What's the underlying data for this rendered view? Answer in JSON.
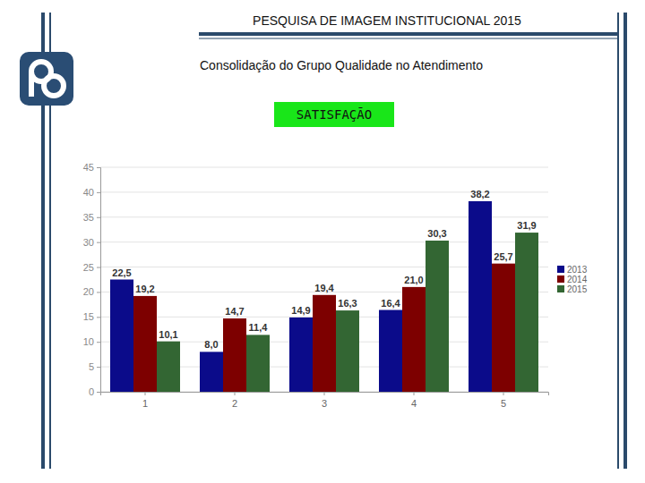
{
  "page": {
    "title": "PESQUISA DE IMAGEM INSTITUCIONAL 2015",
    "subtitle": "Consolidação do Grupo Qualidade no Atendimento"
  },
  "chart_data": {
    "type": "bar",
    "title": "SATISFAÇÃO",
    "categories": [
      "1",
      "2",
      "3",
      "4",
      "5"
    ],
    "series": [
      {
        "name": "2013",
        "color": "#0b0b8a",
        "values": [
          22.5,
          8.0,
          14.9,
          16.4,
          38.2
        ],
        "value_labels": [
          "22,5",
          "8,0",
          "14,9",
          "16,4",
          "38,2"
        ]
      },
      {
        "name": "2014",
        "color": "#7d0000",
        "values": [
          19.2,
          14.7,
          19.4,
          21.0,
          25.7
        ],
        "value_labels": [
          "19,2",
          "14,7",
          "19,4",
          "21,0",
          "25,7"
        ]
      },
      {
        "name": "2015",
        "color": "#336633",
        "values": [
          10.1,
          11.4,
          16.3,
          30.3,
          31.9
        ],
        "value_labels": [
          "10,1",
          "11,4",
          "16,3",
          "30,3",
          "31,9"
        ]
      }
    ],
    "ylim": [
      0,
      45
    ],
    "yticks": [
      0,
      5,
      10,
      15,
      20,
      25,
      30,
      35,
      40,
      45
    ],
    "grid": true,
    "legend": "right",
    "data_labels": true
  }
}
